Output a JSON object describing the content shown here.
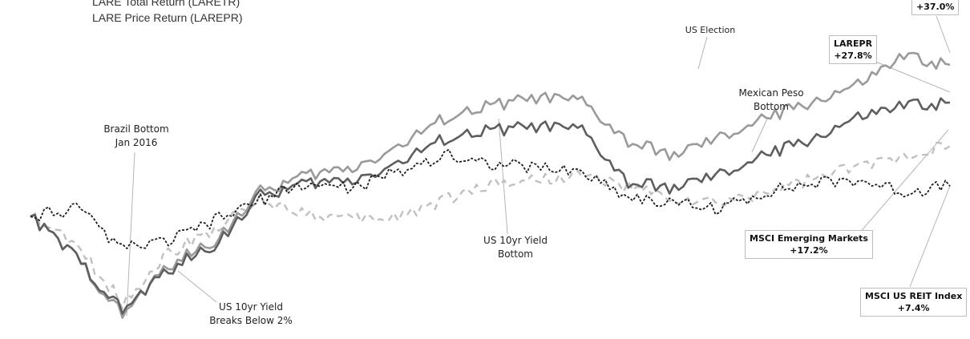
{
  "legend": {
    "total_return": "LARE Total Return (LARETR)",
    "price_return": "LARE Price Return (LAREPR)"
  },
  "annotations": {
    "brazil_bottom_1": "Brazil Bottom",
    "brazil_bottom_2": "Jan 2016",
    "us10yr_breaks_1": "US 10yr Yield",
    "us10yr_breaks_2": "Breaks Below 2%",
    "us10yr_bottom_1": "US 10yr Yield",
    "us10yr_bottom_2": "Bottom",
    "us_election": "US Election",
    "peso_bottom_1": "Mexican Peso",
    "peso_bottom_2": "Bottom"
  },
  "callouts": {
    "laretr_value": "+37.0%",
    "larepr_name": "LAREPR",
    "larepr_value": "+27.8%",
    "msci_em_name": "MSCI Emerging Markets",
    "msci_em_value": "+17.2%",
    "msci_reit_name": "MSCI US REIT Index",
    "msci_reit_value": "+7.4%"
  },
  "colors": {
    "laretr": "#9a9a9a",
    "larepr": "#5e5e5e",
    "msci_em": "#c0c0c0",
    "msci_reit": "#1e1e1e"
  },
  "chart_data": {
    "type": "line",
    "x_range": [
      0,
      100
    ],
    "y_range": [
      -25,
      45
    ],
    "series": [
      {
        "name": "LARETR",
        "style": "solid",
        "values": [
          0,
          -10,
          -24,
          -12,
          -6,
          6,
          10,
          12,
          17,
          24,
          27,
          29,
          28,
          18,
          15,
          19,
          24,
          28,
          32,
          39,
          37
        ]
      },
      {
        "name": "LAREPR",
        "style": "solid",
        "values": [
          0,
          -10,
          -23,
          -13,
          -7,
          5,
          8,
          9,
          13,
          19,
          21,
          22,
          21,
          8,
          7,
          10,
          15,
          19,
          24,
          27,
          27.8
        ]
      },
      {
        "name": "MSCI Emerging Markets",
        "style": "dashed",
        "values": [
          0,
          -7,
          -21,
          -9,
          -3,
          4,
          1,
          -1,
          0,
          4,
          8,
          9,
          10,
          7,
          4,
          3,
          6,
          9,
          12,
          15,
          17.2
        ]
      },
      {
        "name": "MSCI US REIT Index",
        "style": "dotted",
        "values": [
          0,
          2,
          -8,
          -6,
          -1,
          4,
          8,
          7,
          11,
          15,
          13,
          12,
          11,
          5,
          3,
          2,
          6,
          8,
          9,
          6,
          7.4
        ]
      }
    ]
  }
}
